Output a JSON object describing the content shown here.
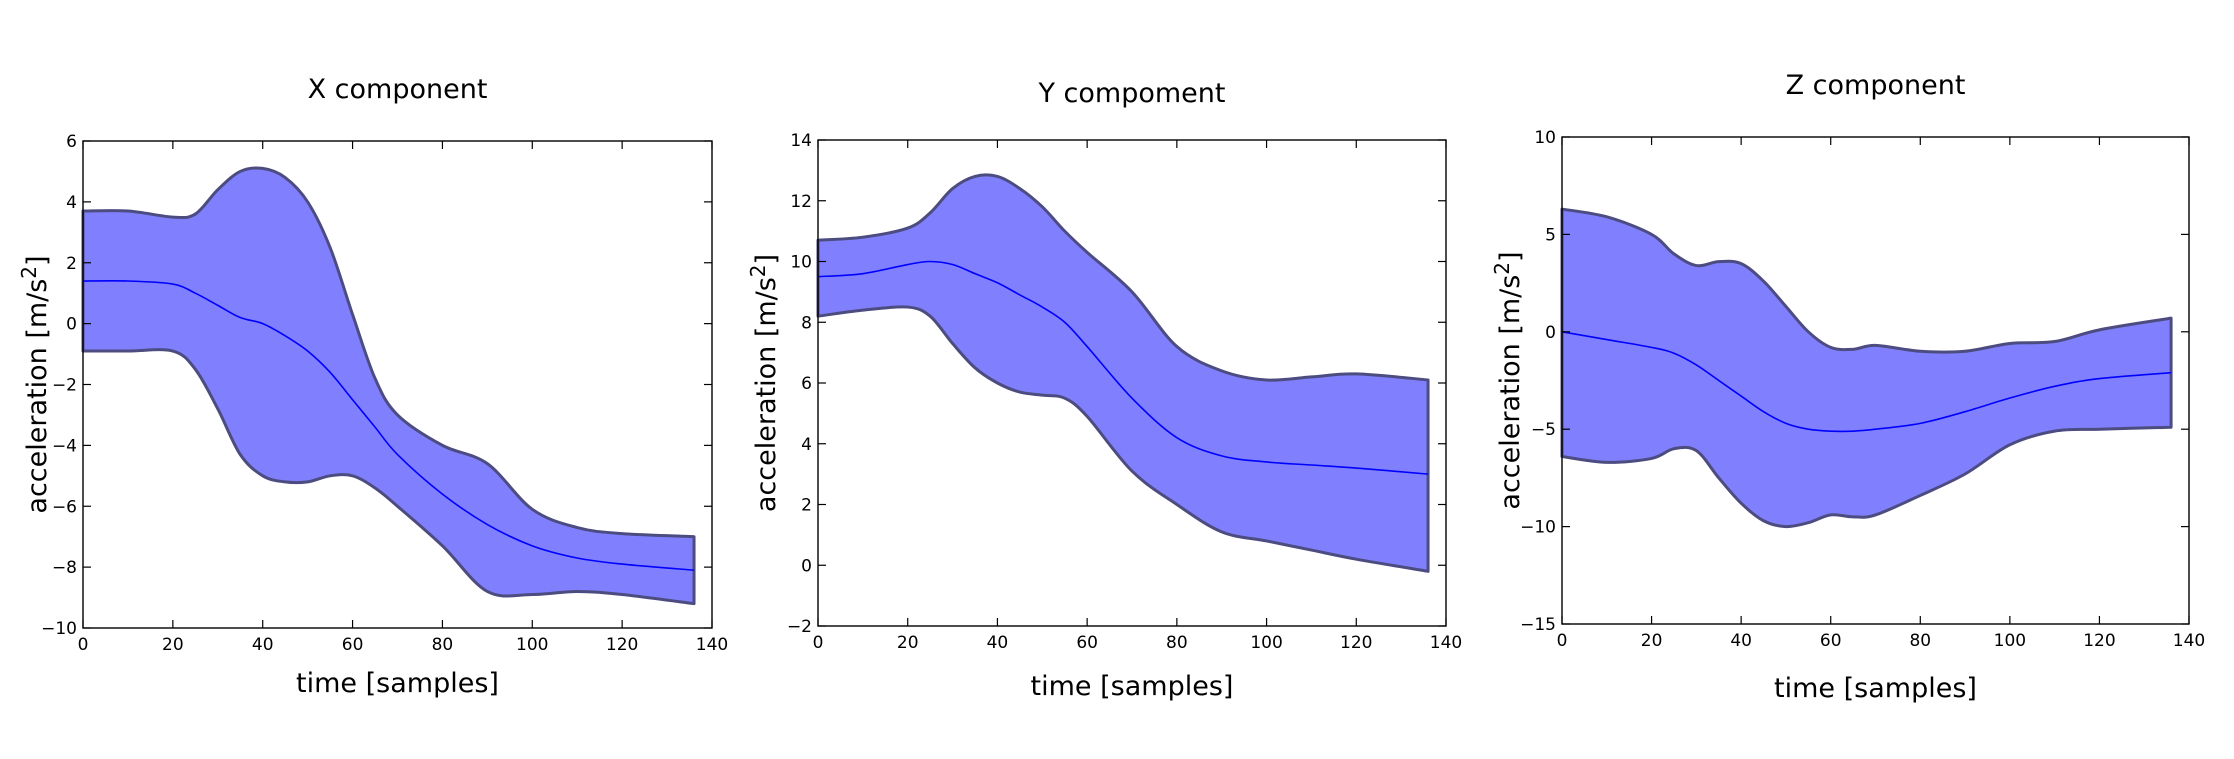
{
  "chart_data": [
    {
      "type": "area",
      "title": "X component",
      "xlabel": "time [samples]",
      "ylabel": "acceleration  [m/s",
      "ylabel_sup": "2",
      "ylabel_end": "]",
      "xlim": [
        0,
        140
      ],
      "ylim": [
        -10,
        6
      ],
      "xticks": [
        0,
        20,
        40,
        60,
        80,
        100,
        120,
        140
      ],
      "yticks": [
        -10,
        -8,
        -6,
        -4,
        -2,
        0,
        2,
        4,
        6
      ],
      "ytick_labels": [
        "−10",
        "−8",
        "−6",
        "−4",
        "−2",
        "0",
        "2",
        "4",
        "6"
      ],
      "grid": false,
      "x": [
        0,
        10,
        20,
        25,
        30,
        35,
        40,
        45,
        50,
        55,
        60,
        65,
        70,
        80,
        90,
        100,
        110,
        120,
        136
      ],
      "upper": [
        3.7,
        3.7,
        3.5,
        3.6,
        4.4,
        5.0,
        5.1,
        4.8,
        4.0,
        2.5,
        0.3,
        -1.8,
        -3.0,
        -4.0,
        -4.6,
        -6.1,
        -6.7,
        -6.9,
        -7.0
      ],
      "mean": [
        1.4,
        1.4,
        1.3,
        1.0,
        0.6,
        0.2,
        0.0,
        -0.4,
        -0.9,
        -1.6,
        -2.5,
        -3.4,
        -4.3,
        -5.6,
        -6.6,
        -7.3,
        -7.7,
        -7.9,
        -8.1
      ],
      "lower": [
        -0.9,
        -0.9,
        -0.9,
        -1.5,
        -2.8,
        -4.3,
        -5.0,
        -5.2,
        -5.2,
        -5.0,
        -5.0,
        -5.4,
        -6.0,
        -7.3,
        -8.8,
        -8.9,
        -8.8,
        -8.9,
        -9.2
      ]
    },
    {
      "type": "area",
      "title": "Y compoment",
      "xlabel": "time [samples]",
      "ylabel": "acceleration  [m/s",
      "ylabel_sup": "2",
      "ylabel_end": "]",
      "xlim": [
        0,
        140
      ],
      "ylim": [
        -2,
        14
      ],
      "xticks": [
        0,
        20,
        40,
        60,
        80,
        100,
        120,
        140
      ],
      "yticks": [
        -2,
        0,
        2,
        4,
        6,
        8,
        10,
        12,
        14
      ],
      "ytick_labels": [
        "−2",
        "0",
        "2",
        "4",
        "6",
        "8",
        "10",
        "12",
        "14"
      ],
      "grid": false,
      "x": [
        0,
        10,
        20,
        25,
        30,
        35,
        40,
        45,
        50,
        55,
        60,
        70,
        80,
        90,
        100,
        110,
        120,
        136
      ],
      "upper": [
        10.7,
        10.8,
        11.1,
        11.6,
        12.4,
        12.8,
        12.8,
        12.4,
        11.8,
        11.0,
        10.3,
        9.0,
        7.2,
        6.4,
        6.1,
        6.2,
        6.3,
        6.1
      ],
      "mean": [
        9.5,
        9.6,
        9.9,
        10.0,
        9.9,
        9.6,
        9.3,
        8.9,
        8.5,
        8.0,
        7.2,
        5.5,
        4.2,
        3.6,
        3.4,
        3.3,
        3.2,
        3.0
      ],
      "lower": [
        8.2,
        8.4,
        8.5,
        8.2,
        7.3,
        6.5,
        6.0,
        5.7,
        5.6,
        5.5,
        4.9,
        3.1,
        2.0,
        1.1,
        0.8,
        0.5,
        0.2,
        -0.2
      ]
    },
    {
      "type": "area",
      "title": "Z component",
      "xlabel": "time [samples]",
      "ylabel": "acceleration  [m/s",
      "ylabel_sup": "2",
      "ylabel_end": "]",
      "xlim": [
        0,
        140
      ],
      "ylim": [
        -15,
        10
      ],
      "xticks": [
        0,
        20,
        40,
        60,
        80,
        100,
        120,
        140
      ],
      "yticks": [
        -15,
        -10,
        -5,
        0,
        5,
        10
      ],
      "ytick_labels": [
        "−15",
        "−10",
        "−5",
        "0",
        "5",
        "10"
      ],
      "grid": false,
      "x": [
        0,
        10,
        20,
        25,
        30,
        35,
        40,
        45,
        50,
        55,
        60,
        65,
        70,
        80,
        90,
        100,
        110,
        120,
        136
      ],
      "upper": [
        6.3,
        5.9,
        5.0,
        4.0,
        3.4,
        3.6,
        3.5,
        2.6,
        1.3,
        0.0,
        -0.8,
        -0.9,
        -0.7,
        -1.0,
        -1.0,
        -0.6,
        -0.5,
        0.1,
        0.7
      ],
      "mean": [
        0.0,
        -0.4,
        -0.8,
        -1.1,
        -1.7,
        -2.5,
        -3.3,
        -4.1,
        -4.7,
        -5.0,
        -5.1,
        -5.1,
        -5.0,
        -4.7,
        -4.1,
        -3.4,
        -2.8,
        -2.4,
        -2.1
      ],
      "lower": [
        -6.4,
        -6.7,
        -6.5,
        -6.0,
        -6.1,
        -7.5,
        -8.8,
        -9.7,
        -10.0,
        -9.8,
        -9.4,
        -9.5,
        -9.4,
        -8.4,
        -7.3,
        -5.8,
        -5.1,
        -5.0,
        -4.9
      ]
    }
  ]
}
